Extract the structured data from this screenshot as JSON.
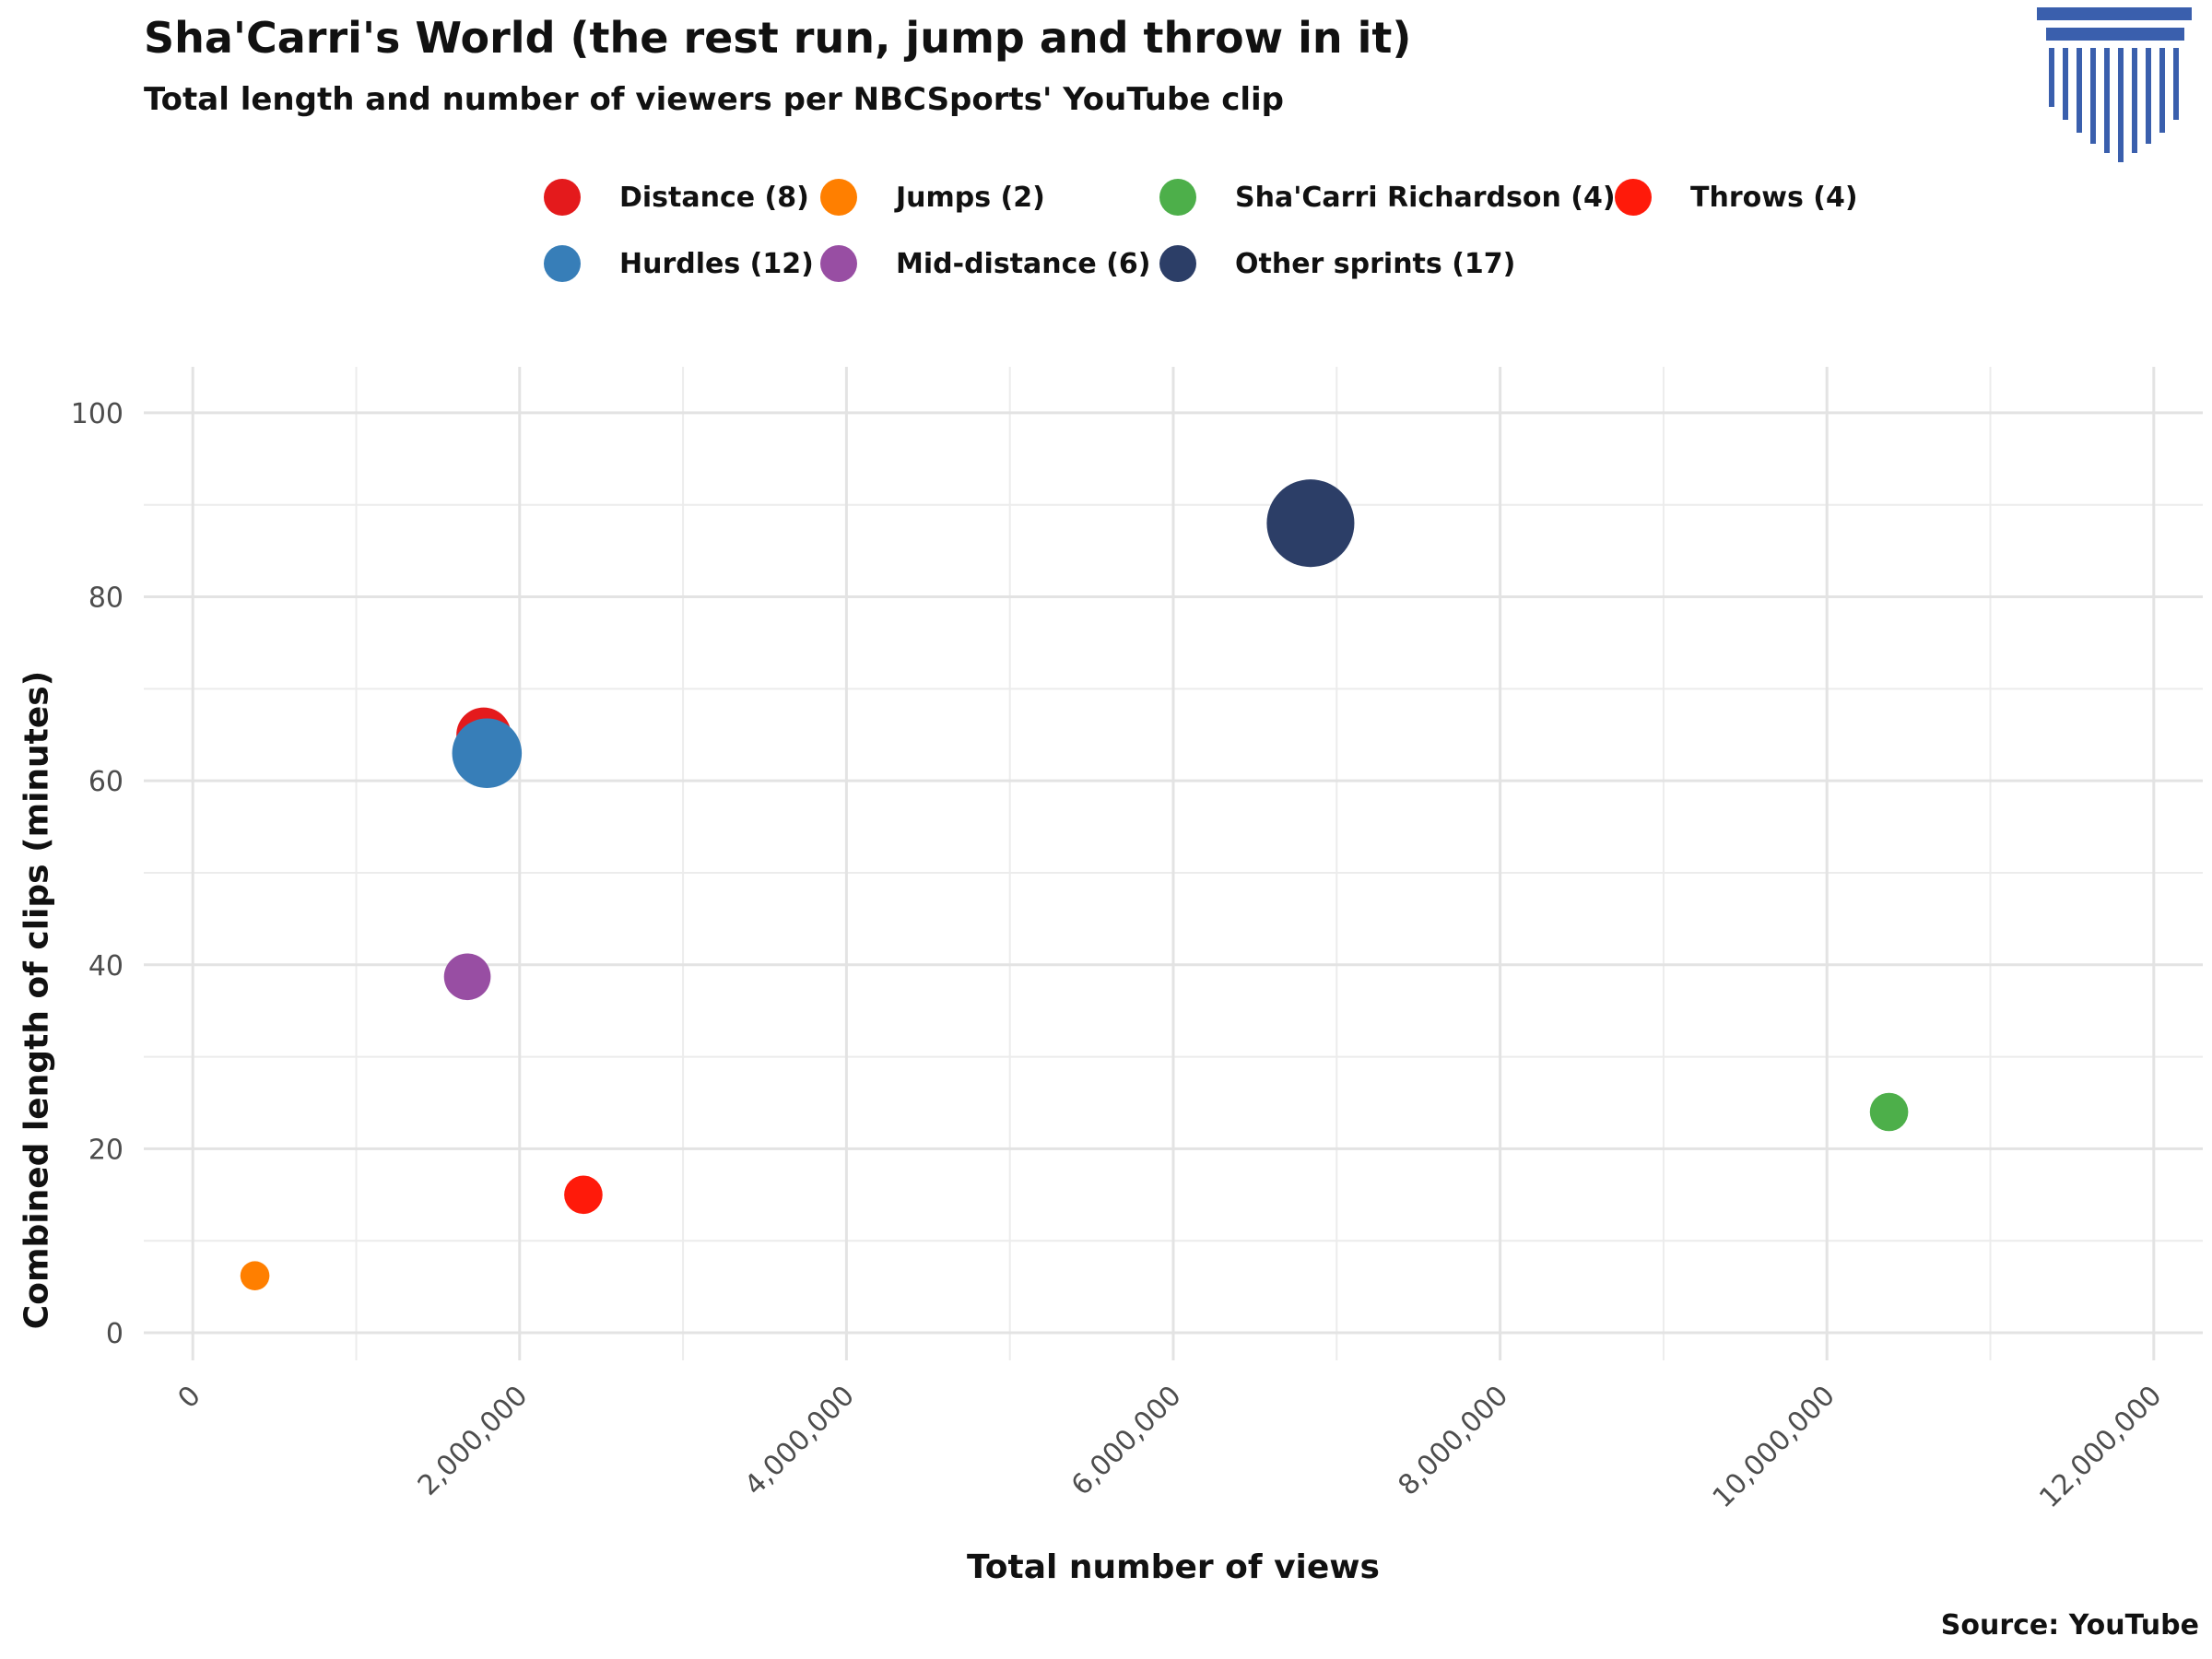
{
  "header": {
    "title": "Sha'Carri's World (the rest run, jump and throw in it)",
    "subtitle": "Total length and number of viewers per NBCSports' YouTube clip"
  },
  "logo": {
    "icon": "column-pillar-icon",
    "color": "#3a5fad"
  },
  "caption": "Source: YouTube",
  "chart_data": {
    "type": "scatter",
    "xlabel": "Total number of views",
    "ylabel": "Combined length of clips (minutes)",
    "xlim": [
      -300000,
      12300000
    ],
    "ylim": [
      -3,
      105
    ],
    "x_ticks": [
      0,
      2000000,
      4000000,
      6000000,
      8000000,
      10000000,
      12000000
    ],
    "x_tick_labels": [
      "0",
      "2,000,000",
      "4,000,000",
      "6,000,000",
      "8,000,000",
      "10,000,000",
      "12,000,000"
    ],
    "y_ticks": [
      0,
      20,
      40,
      60,
      80,
      100
    ],
    "y_tick_labels": [
      "0",
      "20",
      "40",
      "60",
      "80",
      "100"
    ],
    "grid": true,
    "legend_position": "top",
    "size_encodes": "number of clips",
    "series": [
      {
        "name": "Distance (8)",
        "color": "#e41a1c",
        "clips": 8,
        "x": 1780000,
        "y": 65
      },
      {
        "name": "Jumps (2)",
        "color": "#ff7f00",
        "clips": 2,
        "x": 380000,
        "y": 6.2
      },
      {
        "name": "Sha'Carri Richardson (4)",
        "color": "#4daf4a",
        "clips": 4,
        "x": 10380000,
        "y": 24
      },
      {
        "name": "Throws (4)",
        "color": "#ff1a0a",
        "clips": 4,
        "x": 2390000,
        "y": 15
      },
      {
        "name": "Hurdles (12)",
        "color": "#377eb8",
        "clips": 12,
        "x": 1800000,
        "y": 63
      },
      {
        "name": "Mid-distance (6)",
        "color": "#984ea3",
        "clips": 6,
        "x": 1680000,
        "y": 38.7
      },
      {
        "name": "Other sprints (17)",
        "color": "#2c3e67",
        "clips": 17,
        "x": 6840000,
        "y": 88
      }
    ]
  }
}
